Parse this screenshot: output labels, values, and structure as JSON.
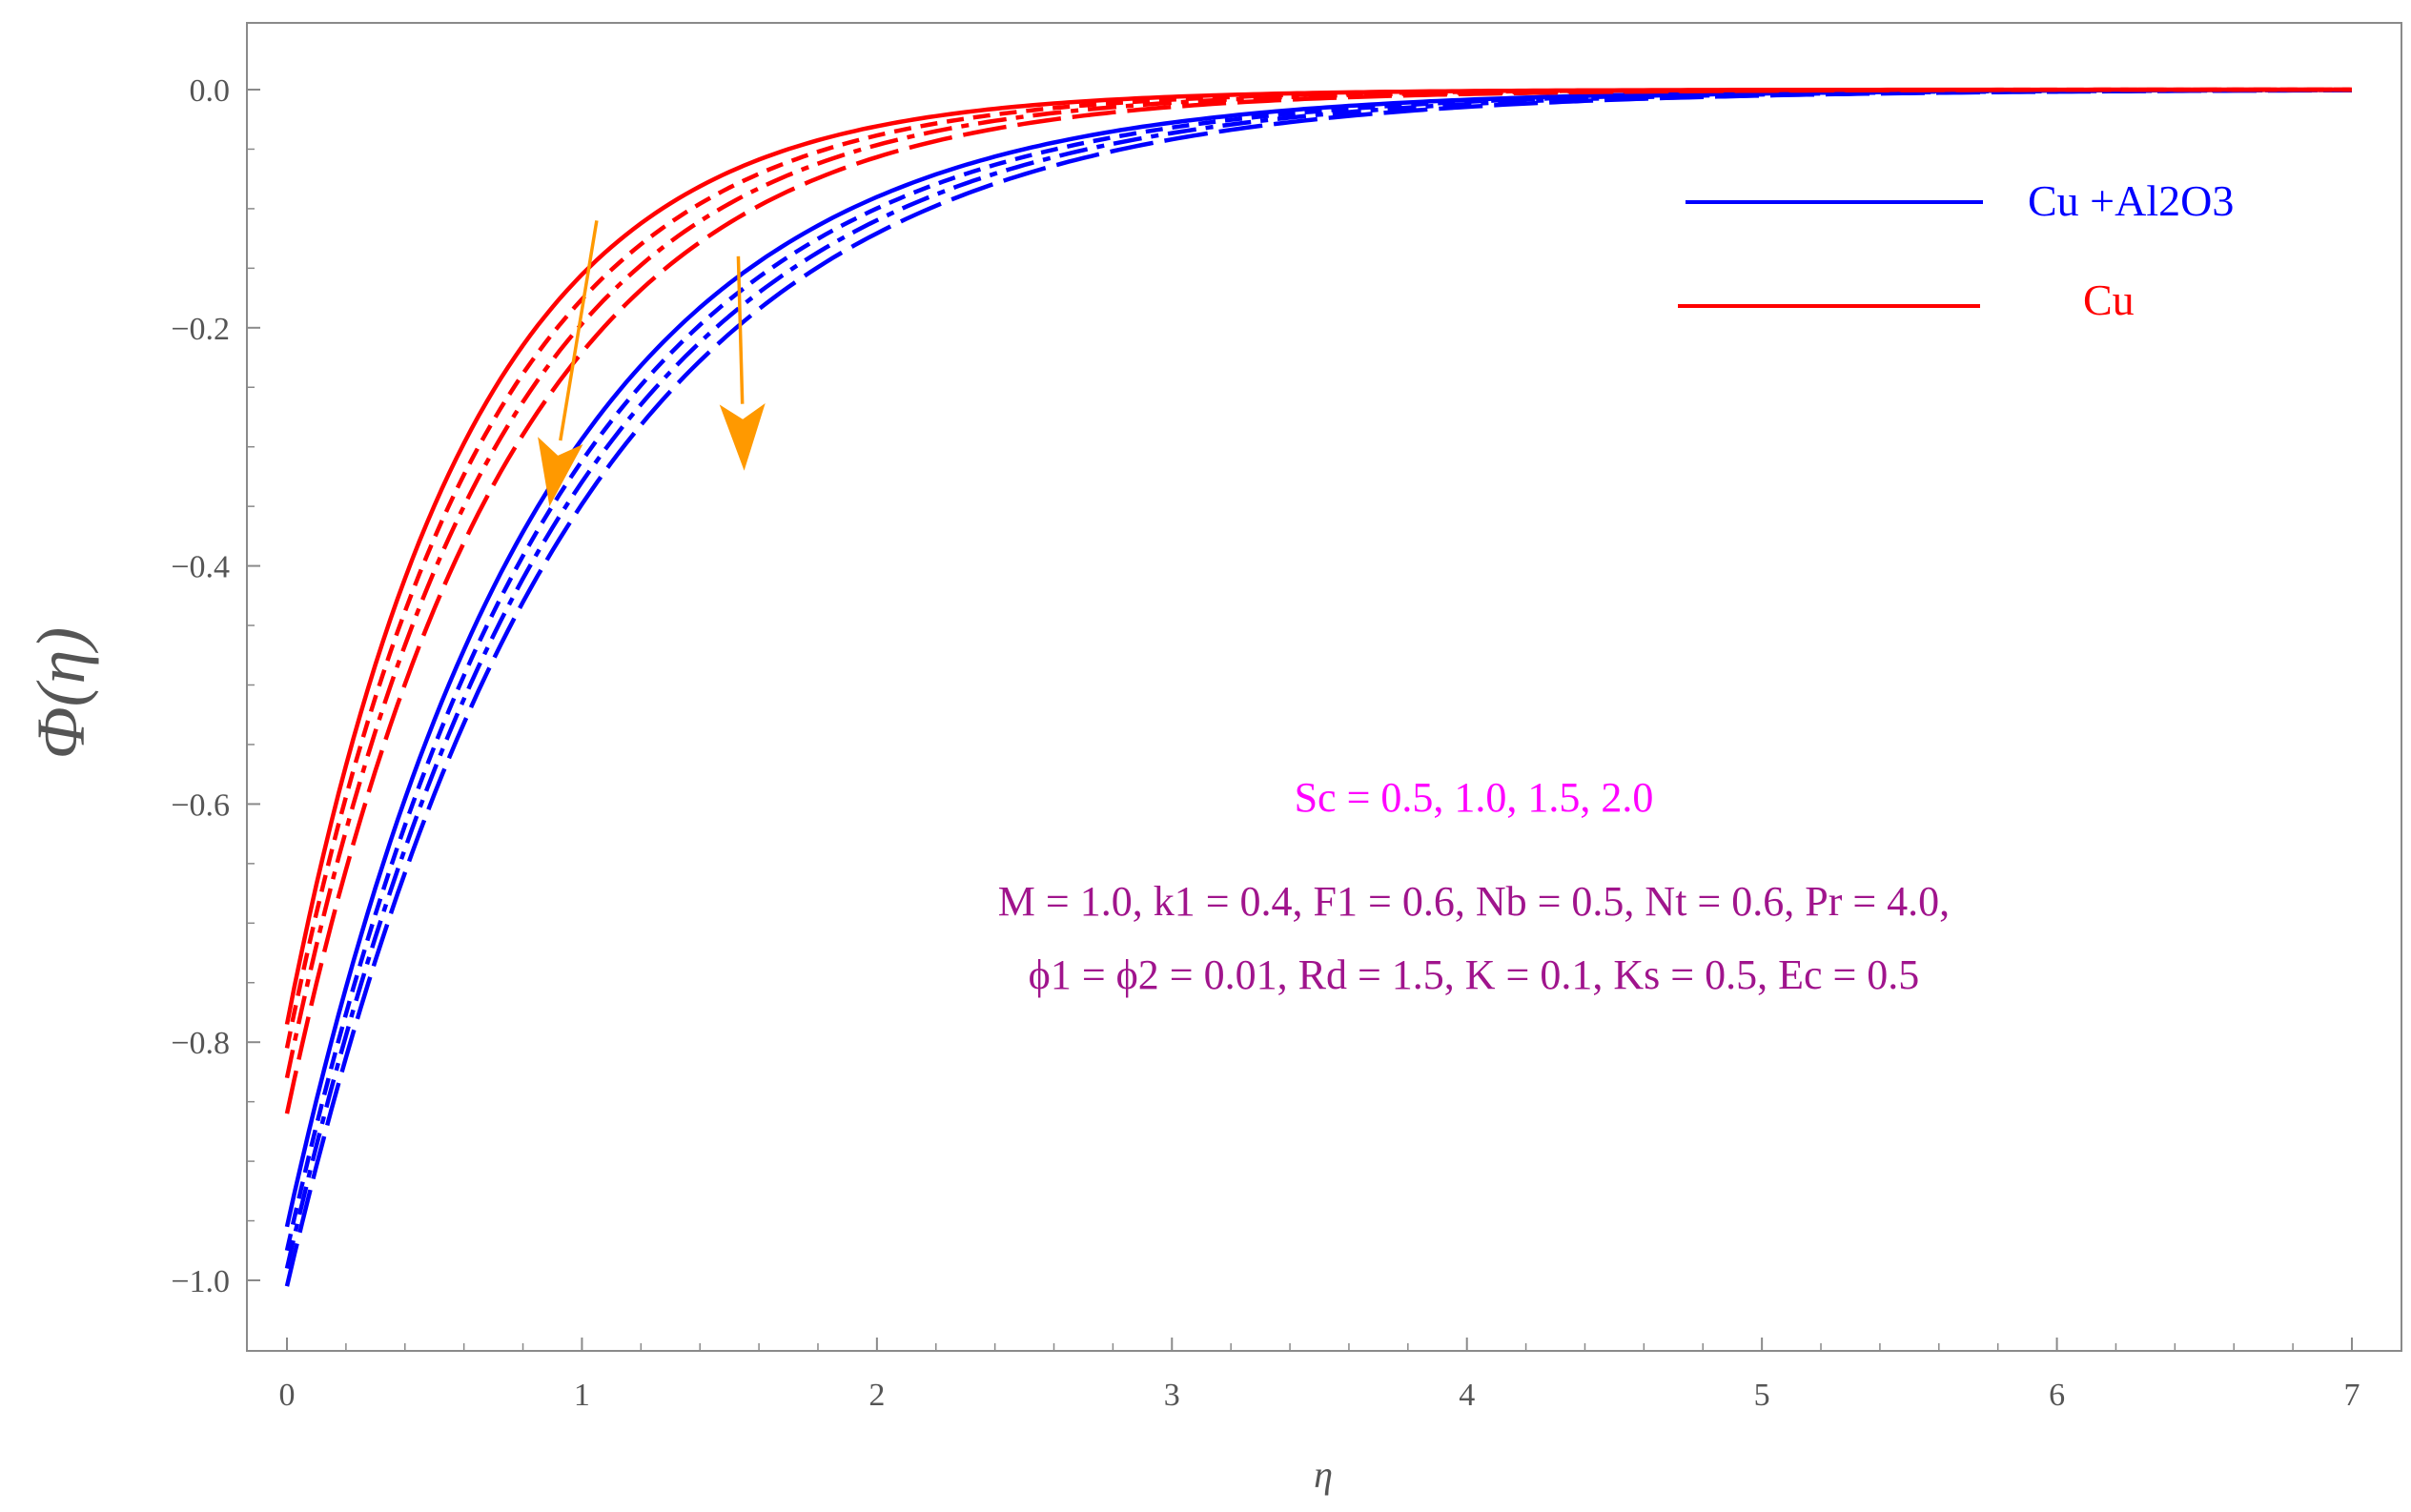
{
  "chart_data": {
    "type": "line",
    "title": "",
    "xlabel": "η",
    "ylabel": "Φ(η)",
    "xlim": [
      0,
      7
    ],
    "ylim": [
      -1.05,
      0.05
    ],
    "x_ticks": [
      "0",
      "1",
      "2",
      "3",
      "4",
      "5",
      "6",
      "7"
    ],
    "y_ticks": [
      "0.0",
      "−0.2",
      "−0.4",
      "−0.6",
      "−0.8",
      "−1.0"
    ],
    "grid": false,
    "legend": {
      "placement": "top-right",
      "entries": [
        {
          "label": "Cu +Al2O3",
          "color": "#0000ff"
        },
        {
          "label": "Cu",
          "color": "#ff0000"
        }
      ]
    },
    "groups": [
      {
        "name": "Cu +Al2O3",
        "color": "#0000ff",
        "curves": [
          {
            "dash": "solid",
            "start": -0.955,
            "decay": 1.18
          },
          {
            "dash": "short-dash",
            "start": -0.975,
            "decay": 1.14
          },
          {
            "dash": "dash-dot",
            "start": -0.99,
            "decay": 1.1
          },
          {
            "dash": "long-dash",
            "start": -1.005,
            "decay": 1.06
          }
        ]
      },
      {
        "name": "Cu",
        "color": "#ff0000",
        "curves": [
          {
            "dash": "solid",
            "start": -0.785,
            "decay": 1.62
          },
          {
            "dash": "short-dash",
            "start": -0.805,
            "decay": 1.52
          },
          {
            "dash": "dash-dot",
            "start": -0.83,
            "decay": 1.44
          },
          {
            "dash": "long-dash",
            "start": -0.86,
            "decay": 1.36
          }
        ]
      }
    ],
    "annotations": {
      "sc_text": "Sc = 0.5, 1.0, 1.5, 2.0",
      "sc_color": "#ff00ff",
      "param_line1": "M = 1.0, k1 = 0.4, F1 = 0.6, Nb = 0.5, Nt = 0.6, Pr = 4.0,",
      "param_line2": "ϕ1 = ϕ2 = 0.01, Rd = 1.5, K = 0.1, Ks = 0.5, Ec = 0.5",
      "param_color": "#a0148c",
      "arrow_color": "#ff9900",
      "arrows": [
        {
          "from": [
            1.05,
            -0.11
          ],
          "to": [
            0.89,
            -0.35
          ]
        },
        {
          "from": [
            1.53,
            -0.14
          ],
          "to": [
            1.55,
            -0.32
          ]
        }
      ]
    }
  }
}
